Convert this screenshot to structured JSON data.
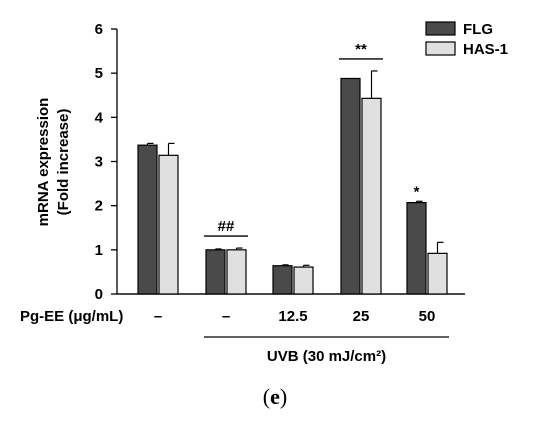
{
  "chart_data": {
    "type": "bar",
    "ylabel_line1": "mRNA expression",
    "ylabel_line2": "(Fold increase)",
    "ylim": [
      0,
      6
    ],
    "yticks": [
      "0",
      "1",
      "2",
      "3",
      "4",
      "5",
      "6"
    ],
    "x_row_label": "Pg-EE (μg/mL)",
    "categories": [
      "–",
      "–",
      "12.5",
      "25",
      "50"
    ],
    "series": [
      {
        "name": "FLG",
        "values": [
          3.37,
          1.0,
          0.64,
          4.88,
          2.07
        ],
        "errors": [
          0.04,
          0.02,
          0.02,
          0.0,
          0.03
        ],
        "color": "#4a4a4a"
      },
      {
        "name": "HAS-1",
        "values": [
          3.14,
          1.0,
          0.61,
          4.43,
          0.92
        ],
        "errors": [
          0.27,
          0.04,
          0.04,
          0.62,
          0.25
        ],
        "color": "#e0e0e0"
      }
    ],
    "legend_position": "top-right",
    "annotations": [
      {
        "text": "##",
        "category_index": 1
      },
      {
        "text": "**",
        "category_index": 3
      },
      {
        "text": "*",
        "category_index": 4,
        "series_index": 0
      }
    ],
    "group_label": "UVB (30 mJ/cm²)",
    "group_categories": [
      1,
      4
    ]
  },
  "caption": {
    "open": "(",
    "letter": "e",
    "close": ")"
  }
}
